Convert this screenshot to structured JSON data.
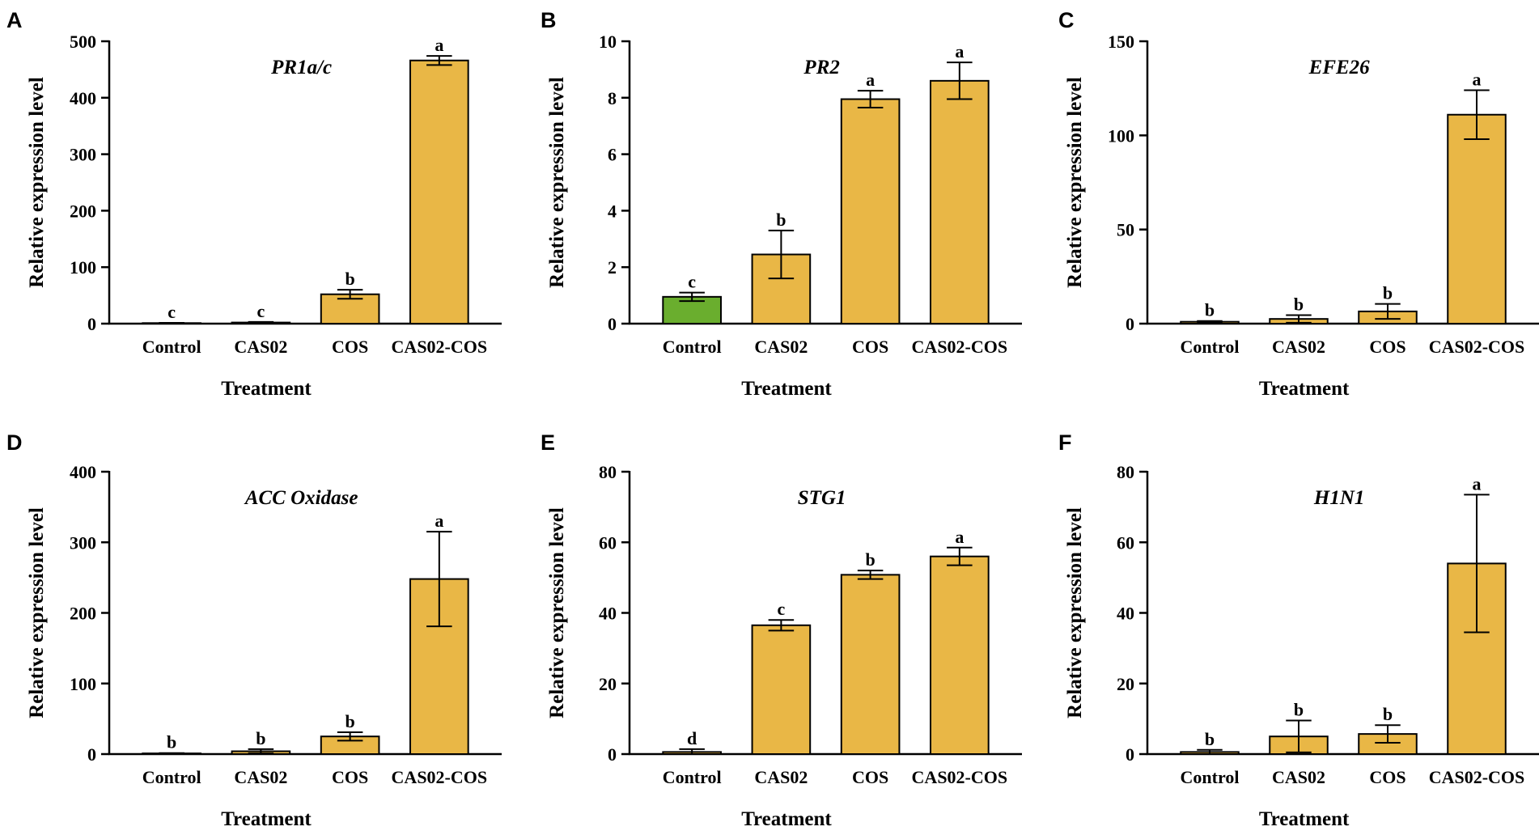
{
  "figure": {
    "colors": {
      "bar_default": "#E9B746",
      "bar_control_highlight": "#6AAE2E",
      "stroke": "#000000"
    }
  },
  "chart_data": [
    {
      "panel": "A",
      "type": "bar",
      "title": "PR1a/c",
      "xlabel": "Treatment",
      "ylabel": "Relative expression level",
      "ylim": [
        0,
        500
      ],
      "yticks": [
        0,
        100,
        200,
        300,
        400,
        500
      ],
      "categories": [
        "Control",
        "CAS02",
        "COS",
        "CAS02-COS"
      ],
      "values": [
        1,
        2,
        52,
        466
      ],
      "errors": [
        0.5,
        1,
        8,
        8
      ],
      "significance": [
        "c",
        "c",
        "b",
        "a"
      ],
      "bar_colors": [
        "#E9B746",
        "#E9B746",
        "#E9B746",
        "#E9B746"
      ]
    },
    {
      "panel": "B",
      "type": "bar",
      "title": "PR2",
      "xlabel": "Treatment",
      "ylabel": "Relative expression level",
      "ylim": [
        0,
        10
      ],
      "yticks": [
        0,
        2,
        4,
        6,
        8,
        10
      ],
      "categories": [
        "Control",
        "CAS02",
        "COS",
        "CAS02-COS"
      ],
      "values": [
        0.95,
        2.45,
        7.95,
        8.6
      ],
      "errors": [
        0.15,
        0.85,
        0.3,
        0.65
      ],
      "significance": [
        "c",
        "b",
        "a",
        "a"
      ],
      "bar_colors": [
        "#6AAE2E",
        "#E9B746",
        "#E9B746",
        "#E9B746"
      ]
    },
    {
      "panel": "C",
      "type": "bar",
      "title": "EFE26",
      "xlabel": "Treatment",
      "ylabel": "Relative expression level",
      "ylim": [
        0,
        150
      ],
      "yticks": [
        0,
        50,
        100,
        150
      ],
      "categories": [
        "Control",
        "CAS02",
        "COS",
        "CAS02-COS"
      ],
      "values": [
        1,
        2.5,
        6.5,
        111
      ],
      "errors": [
        0.4,
        2,
        4,
        13
      ],
      "significance": [
        "b",
        "b",
        "b",
        "a"
      ],
      "bar_colors": [
        "#E9B746",
        "#E9B746",
        "#E9B746",
        "#E9B746"
      ]
    },
    {
      "panel": "D",
      "type": "bar",
      "title": "ACC Oxidase",
      "xlabel": "Treatment",
      "ylabel": "Relative expression level",
      "ylim": [
        0,
        400
      ],
      "yticks": [
        0,
        100,
        200,
        300,
        400
      ],
      "categories": [
        "Control",
        "CAS02",
        "COS",
        "CAS02-COS"
      ],
      "values": [
        1,
        4,
        25,
        248
      ],
      "errors": [
        0.5,
        3,
        6,
        67
      ],
      "significance": [
        "b",
        "b",
        "b",
        "a"
      ],
      "bar_colors": [
        "#E9B746",
        "#E9B746",
        "#E9B746",
        "#E9B746"
      ]
    },
    {
      "panel": "E",
      "type": "bar",
      "title": "STG1",
      "xlabel": "Treatment",
      "ylabel": "Relative expression level",
      "ylim": [
        0,
        80
      ],
      "yticks": [
        0,
        20,
        40,
        60,
        80
      ],
      "categories": [
        "Control",
        "CAS02",
        "COS",
        "CAS02-COS"
      ],
      "values": [
        0.6,
        36.5,
        50.8,
        56
      ],
      "errors": [
        0.8,
        1.5,
        1.2,
        2.5
      ],
      "significance": [
        "d",
        "c",
        "b",
        "a"
      ],
      "bar_colors": [
        "#E9B746",
        "#E9B746",
        "#E9B746",
        "#E9B746"
      ]
    },
    {
      "panel": "F",
      "type": "bar",
      "title": "H1N1",
      "xlabel": "Treatment",
      "ylabel": "Relative expression level",
      "ylim": [
        0,
        80
      ],
      "yticks": [
        0,
        20,
        40,
        60,
        80
      ],
      "categories": [
        "Control",
        "CAS02",
        "COS",
        "CAS02-COS"
      ],
      "values": [
        0.6,
        5,
        5.7,
        54
      ],
      "errors": [
        0.6,
        4.5,
        2.5,
        19.5
      ],
      "significance": [
        "b",
        "b",
        "b",
        "a"
      ],
      "bar_colors": [
        "#E9B746",
        "#E9B746",
        "#E9B746",
        "#E9B746"
      ]
    }
  ]
}
